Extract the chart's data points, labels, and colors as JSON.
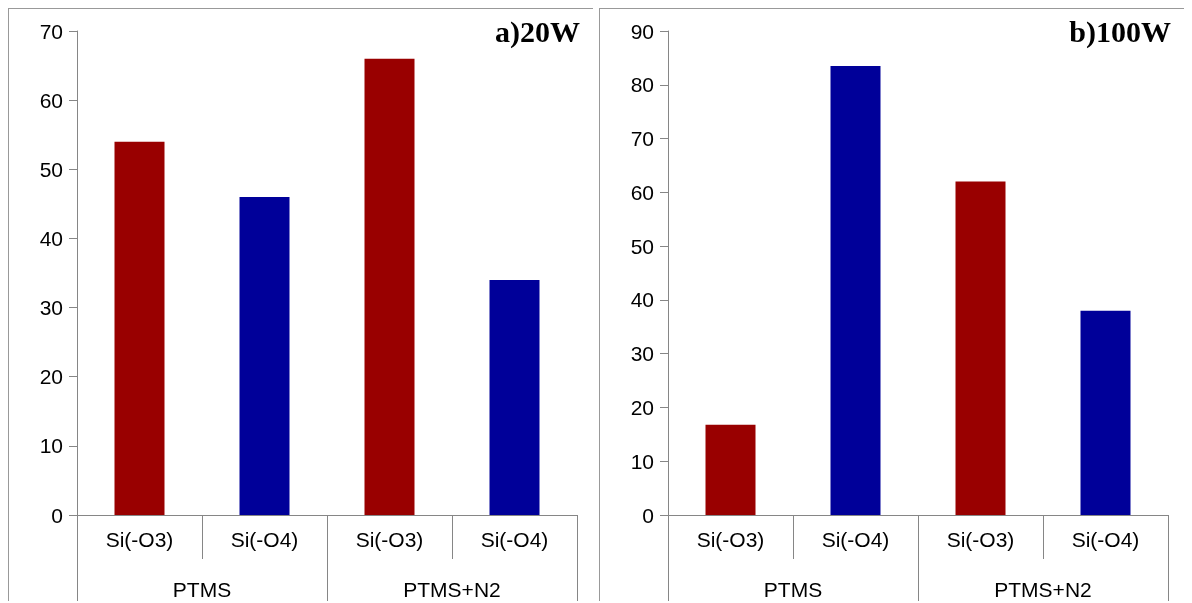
{
  "chart_data": [
    {
      "type": "bar",
      "title": "a)20W",
      "categories": [
        "Si(-O3)",
        "Si(-O4)",
        "Si(-O3)",
        "Si(-O4)"
      ],
      "values": [
        54,
        46,
        66,
        34
      ],
      "colors": [
        "#990000",
        "#000099",
        "#990000",
        "#000099"
      ],
      "ylim": [
        0,
        70
      ],
      "yticks": [
        0,
        10,
        20,
        30,
        40,
        50,
        60,
        70
      ],
      "grid": false,
      "annotations": [
        "PTMS",
        "PTMS+N2"
      ]
    },
    {
      "type": "bar",
      "title": "b)100W",
      "categories": [
        "Si(-O3)",
        "Si(-O4)",
        "Si(-O3)",
        "Si(-O4)"
      ],
      "values": [
        16.8,
        83.5,
        62,
        38
      ],
      "colors": [
        "#990000",
        "#000099",
        "#990000",
        "#000099"
      ],
      "ylim": [
        0,
        90
      ],
      "yticks": [
        0,
        10,
        20,
        30,
        40,
        50,
        60,
        70,
        80,
        90
      ],
      "grid": false,
      "annotations": [
        "PTMS",
        "PTMS+N2"
      ]
    }
  ]
}
